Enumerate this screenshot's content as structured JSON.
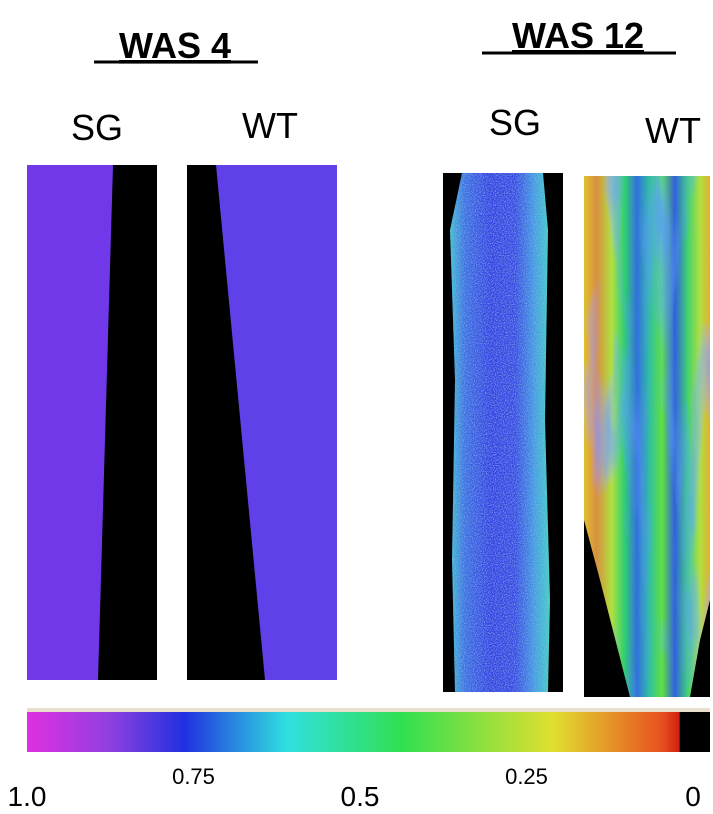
{
  "groups": [
    {
      "title": "WAS 4",
      "panels": [
        "SG",
        "WT"
      ]
    },
    {
      "title": "WAS 12",
      "panels": [
        "SG",
        "WT"
      ]
    }
  ],
  "colorbar": {
    "ticks": [
      {
        "value": 1,
        "label": "1.0"
      },
      0.75,
      0.5,
      0.25,
      0
    ]
  }
}
